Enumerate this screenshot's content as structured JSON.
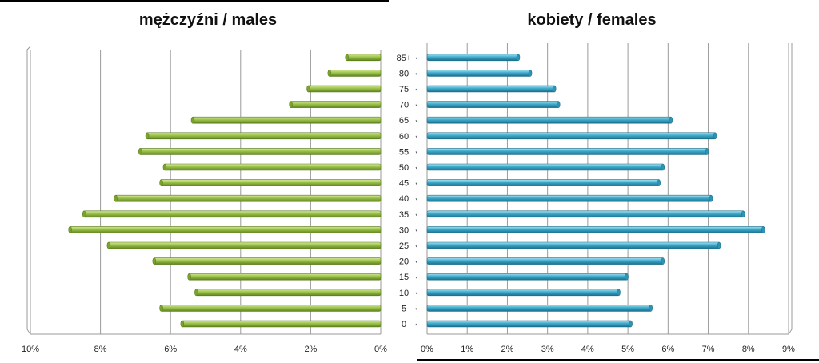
{
  "chart_data": [
    {
      "type": "bar",
      "orientation": "horizontal",
      "direction": "right-to-left",
      "title": "mężczyźni / males",
      "categories": [
        "0",
        "5",
        "10",
        "15",
        "20",
        "25",
        "30",
        "35",
        "40",
        "45",
        "50",
        "55",
        "60",
        "65",
        "70",
        "75",
        "80",
        "85+"
      ],
      "values": [
        5.7,
        6.3,
        5.3,
        5.5,
        6.5,
        7.8,
        8.9,
        8.5,
        7.6,
        6.3,
        6.2,
        6.9,
        6.7,
        5.4,
        2.6,
        2.1,
        1.5,
        1.0
      ],
      "xlim": [
        0,
        10
      ],
      "x_ticks": [
        "10%",
        "8%",
        "6%",
        "4%",
        "2%",
        "0%"
      ],
      "grid": true,
      "color": "#8db33a"
    },
    {
      "type": "bar",
      "orientation": "horizontal",
      "direction": "left-to-right",
      "title": "kobiety / females",
      "categories": [
        "0",
        "5",
        "10",
        "15",
        "20",
        "25",
        "30",
        "35",
        "40",
        "45",
        "50",
        "55",
        "60",
        "65",
        "70",
        "75",
        "80",
        "85+"
      ],
      "values": [
        5.1,
        5.6,
        4.8,
        5.0,
        5.9,
        7.3,
        8.4,
        7.9,
        7.1,
        5.8,
        5.9,
        7.0,
        7.2,
        6.1,
        3.3,
        3.2,
        2.6,
        2.3
      ],
      "xlim": [
        0,
        9
      ],
      "x_ticks": [
        "0%",
        "1%",
        "2%",
        "3%",
        "4%",
        "5%",
        "6%",
        "7%",
        "8%",
        "9%"
      ],
      "grid": true,
      "color": "#3aa6c6"
    }
  ]
}
